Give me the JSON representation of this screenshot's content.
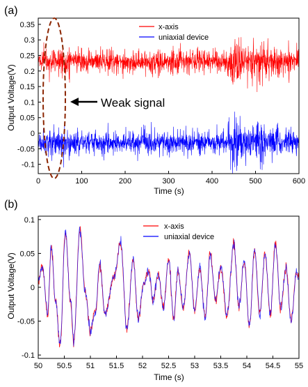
{
  "chart_data": [
    {
      "panel": "(a)",
      "type": "line",
      "xlabel": "Time (s)",
      "ylabel": "Output Voltage(V)",
      "xlim": [
        0,
        600
      ],
      "ylim": [
        -0.13,
        0.37
      ],
      "xticks": [
        "0",
        "100",
        "200",
        "300",
        "400",
        "500",
        "600"
      ],
      "yticks": [
        "-0.1",
        "-0.05",
        "0",
        "0.05",
        "0.1",
        "0.15",
        "0.2",
        "0.25",
        "0.3",
        "0.35"
      ],
      "legend_position": "top-right",
      "annotation": "Weak signal",
      "series": [
        {
          "name": "x-axis",
          "color": "#ff0000",
          "baseline": 0.23,
          "amplitude_typical": 0.035,
          "amplitude_max": 0.1
        },
        {
          "name": "uniaxial device",
          "color": "#0000ff",
          "baseline": -0.03,
          "amplitude_typical": 0.035,
          "amplitude_max": 0.1
        }
      ],
      "highlight_region": {
        "x": [
          35,
          90
        ],
        "color": "#8b2500",
        "style": "dashed-ellipse"
      }
    },
    {
      "panel": "(b)",
      "type": "line",
      "xlabel": "Time (s)",
      "ylabel": "Output Voltage(V)",
      "xlim": [
        50,
        55
      ],
      "ylim": [
        -0.105,
        0.105
      ],
      "xticks": [
        "50",
        "50.5",
        "51",
        "51.5",
        "52",
        "52.5",
        "53",
        "53.5",
        "54",
        "54.5",
        "55"
      ],
      "yticks": [
        "-0.1",
        "-0.05",
        "0",
        "0.05",
        "0.1"
      ],
      "legend_position": "top-right",
      "series": [
        {
          "name": "x-axis",
          "color": "#ff0000"
        },
        {
          "name": "uniaxial device",
          "color": "#0000ff"
        }
      ],
      "signal_points": [
        [
          50.0,
          0.01
        ],
        [
          50.08,
          0.03
        ],
        [
          50.18,
          -0.04
        ],
        [
          50.25,
          0.06
        ],
        [
          50.33,
          -0.02
        ],
        [
          50.42,
          -0.085
        ],
        [
          50.52,
          0.08
        ],
        [
          50.62,
          -0.02
        ],
        [
          50.68,
          -0.08
        ],
        [
          50.8,
          0.085
        ],
        [
          50.9,
          -0.005
        ],
        [
          51.0,
          -0.065
        ],
        [
          51.1,
          -0.035
        ],
        [
          51.18,
          0.035
        ],
        [
          51.28,
          -0.04
        ],
        [
          51.45,
          0.015
        ],
        [
          51.58,
          0.065
        ],
        [
          51.7,
          -0.06
        ],
        [
          51.82,
          0.04
        ],
        [
          51.92,
          -0.045
        ],
        [
          52.02,
          0.005
        ],
        [
          52.12,
          0.025
        ],
        [
          52.2,
          -0.02
        ],
        [
          52.3,
          0.02
        ],
        [
          52.4,
          -0.03
        ],
        [
          52.5,
          0.04
        ],
        [
          52.6,
          -0.045
        ],
        [
          52.68,
          0.025
        ],
        [
          52.78,
          -0.03
        ],
        [
          52.9,
          0.05
        ],
        [
          53.0,
          -0.035
        ],
        [
          53.1,
          0.03
        ],
        [
          53.2,
          -0.045
        ],
        [
          53.3,
          0.05
        ],
        [
          53.4,
          -0.02
        ],
        [
          53.5,
          0.03
        ],
        [
          53.62,
          -0.04
        ],
        [
          53.75,
          0.065
        ],
        [
          53.85,
          -0.03
        ],
        [
          53.95,
          0.04
        ],
        [
          54.05,
          -0.055
        ],
        [
          54.15,
          0.055
        ],
        [
          54.25,
          -0.04
        ],
        [
          54.35,
          0.05
        ],
        [
          54.45,
          -0.04
        ],
        [
          54.55,
          0.065
        ],
        [
          54.65,
          -0.03
        ],
        [
          54.75,
          0.03
        ],
        [
          54.85,
          -0.05
        ],
        [
          54.95,
          0.02
        ],
        [
          55.0,
          0.015
        ]
      ]
    }
  ]
}
